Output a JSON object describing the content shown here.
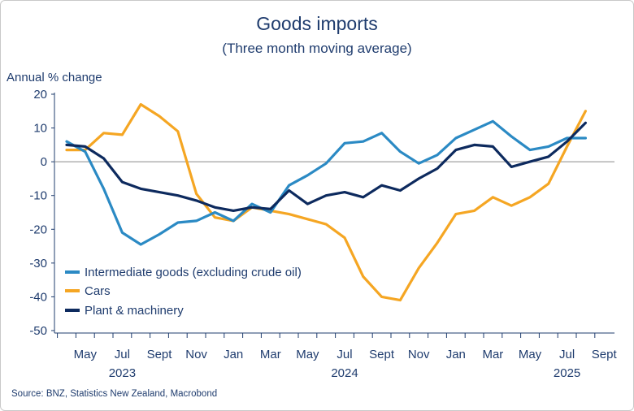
{
  "chart_data": {
    "type": "line",
    "title": "Goods imports",
    "subtitle": "(Three month moving average)",
    "ylabel": "Annual % change",
    "ylim": [
      -50,
      20
    ],
    "yticks": [
      20,
      10,
      0,
      -10,
      -20,
      -30,
      -40,
      -50
    ],
    "x_tick_labels": [
      "May",
      "Jul",
      "Sept",
      "Nov",
      "Jan",
      "Mar",
      "May",
      "Jul",
      "Sept",
      "Nov",
      "Jan",
      "Mar",
      "May",
      "Jul",
      "Sept"
    ],
    "year_labels": [
      {
        "label": "2023",
        "center_index": 3
      },
      {
        "label": "2024",
        "center_index": 15
      },
      {
        "label": "2025",
        "center_index": 27
      }
    ],
    "x_months": [
      "Apr 2023",
      "May 2023",
      "Jun 2023",
      "Jul 2023",
      "Aug 2023",
      "Sep 2023",
      "Oct 2023",
      "Nov 2023",
      "Dec 2023",
      "Jan 2024",
      "Feb 2024",
      "Mar 2024",
      "Apr 2024",
      "May 2024",
      "Jun 2024",
      "Jul 2024",
      "Aug 2024",
      "Sep 2024",
      "Oct 2024",
      "Nov 2024",
      "Dec 2024",
      "Jan 2025",
      "Feb 2025",
      "Mar 2025",
      "Apr 2025",
      "May 2025",
      "Jun 2025",
      "Jul 2025",
      "Aug 2025"
    ],
    "series": [
      {
        "name": "Intermediate goods (excluding crude oil)",
        "color": "#2b8ac4",
        "values": [
          6,
          3,
          -8,
          -21,
          -24.5,
          -21.5,
          -18,
          -17.5,
          -15,
          -17.5,
          -12.5,
          -15,
          -7,
          -4,
          -0.5,
          5.5,
          6,
          8.5,
          3,
          -0.5,
          2,
          7,
          9.5,
          12,
          7.5,
          3.5,
          4.5,
          7,
          7
        ]
      },
      {
        "name": "Cars",
        "color": "#f5a623",
        "values": [
          3.5,
          3.5,
          8.5,
          8,
          17,
          13.5,
          9,
          -9.5,
          -16.5,
          -17.5,
          -13.5,
          -14.5,
          -15.5,
          -17,
          -18.5,
          -22.5,
          -34,
          -40,
          -41,
          -31.5,
          -24,
          -15.5,
          -14.5,
          -10.5,
          -13,
          -10.5,
          -6.5,
          4.5,
          15
        ]
      },
      {
        "name": "Plant & machinery",
        "color": "#0d2a5e",
        "values": [
          5,
          4.5,
          1,
          -6,
          -8,
          -9,
          -10,
          -11.5,
          -13.5,
          -14.5,
          -13.5,
          -14,
          -8.5,
          -12.5,
          -10,
          -9,
          -10.5,
          -7,
          -8.5,
          -5,
          -2,
          3.5,
          5,
          4.5,
          -1.5,
          0,
          1.5,
          6,
          11.5
        ]
      }
    ],
    "legend_position": "bottom-left"
  },
  "source": "Source: BNZ, Statistics New Zealand, Macrobond"
}
